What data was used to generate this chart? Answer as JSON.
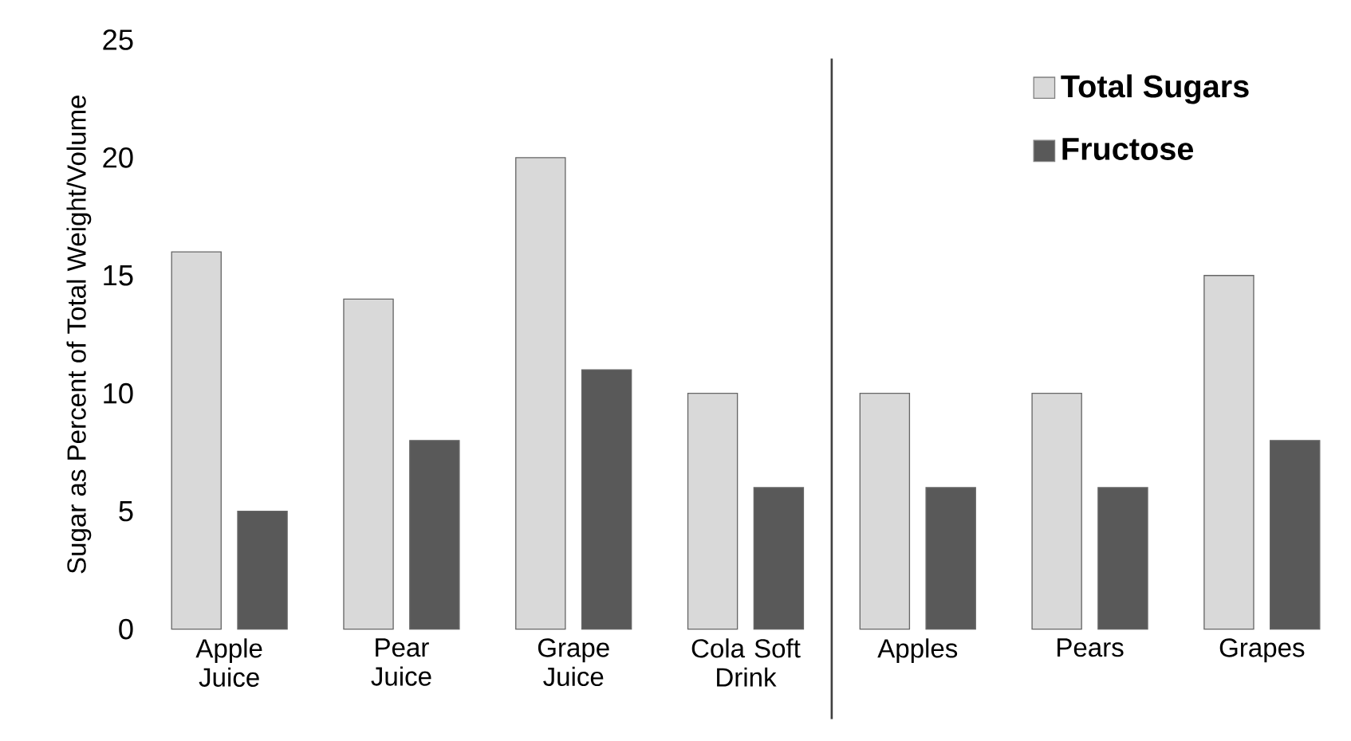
{
  "chart_data": {
    "type": "bar",
    "ylabel": "Sugar as Percent of Total Weight/Volume",
    "categories": [
      "Apple Juice",
      "Pear Juice",
      "Grape Juice",
      "Cola Soft Drink",
      "Apples",
      "Pears",
      "Grapes"
    ],
    "series": [
      {
        "name": "Total Sugars",
        "color": "#d9d9d9",
        "values": [
          16,
          14,
          20,
          10,
          10,
          10,
          15
        ]
      },
      {
        "name": "Fructose",
        "color": "#595959",
        "values": [
          5,
          8,
          11,
          6,
          6,
          6,
          8
        ]
      }
    ],
    "ylim": [
      0,
      25
    ],
    "yticks": [
      0,
      5,
      10,
      15,
      20,
      25
    ],
    "grid": false,
    "legend": "top right"
  }
}
